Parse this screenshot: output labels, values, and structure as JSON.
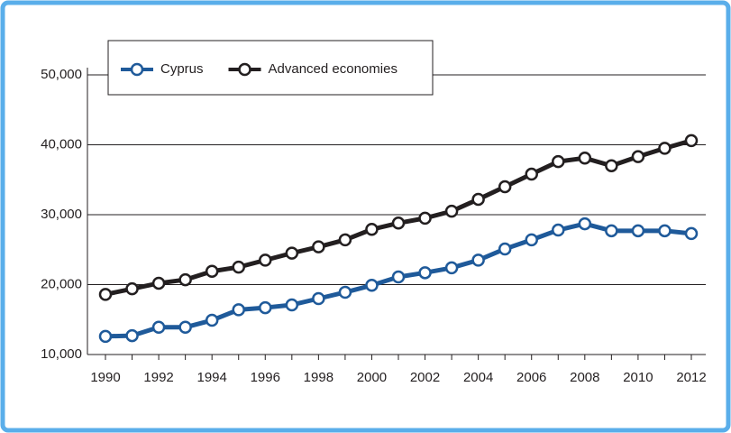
{
  "chart_data": {
    "type": "line",
    "x": [
      1990,
      1991,
      1992,
      1993,
      1994,
      1995,
      1996,
      1997,
      1998,
      1999,
      2000,
      2001,
      2002,
      2003,
      2004,
      2005,
      2006,
      2007,
      2008,
      2009,
      2010,
      2011,
      2012
    ],
    "series": [
      {
        "name": "Cyprus",
        "color": "#1f5a9a",
        "values": [
          12600,
          12700,
          13900,
          13900,
          14900,
          16400,
          16700,
          17100,
          18000,
          18900,
          19900,
          21100,
          21700,
          22400,
          23500,
          25100,
          26400,
          27800,
          28700,
          27700,
          27700,
          27700,
          27300
        ]
      },
      {
        "name": "Advanced economies",
        "color": "#231f20",
        "values": [
          18600,
          19400,
          20200,
          20700,
          21900,
          22500,
          23500,
          24500,
          25400,
          26400,
          27900,
          28800,
          29500,
          30500,
          32200,
          34000,
          35800,
          37600,
          38100,
          37000,
          38300,
          39500,
          40600
        ]
      }
    ],
    "xlim": [
      1990,
      2012
    ],
    "xticks": [
      1990,
      1992,
      1994,
      1996,
      1998,
      2000,
      2002,
      2004,
      2006,
      2008,
      2010,
      2012
    ],
    "ylim": [
      10000,
      50000
    ],
    "yticks": [
      {
        "value": 10000,
        "label": "10,000"
      },
      {
        "value": 20000,
        "label": "20,000"
      },
      {
        "value": 30000,
        "label": "30,000"
      },
      {
        "value": 40000,
        "label": "40,000"
      },
      {
        "value": 50000,
        "label": "50,000"
      }
    ],
    "grid": true,
    "legend": "top-left"
  }
}
